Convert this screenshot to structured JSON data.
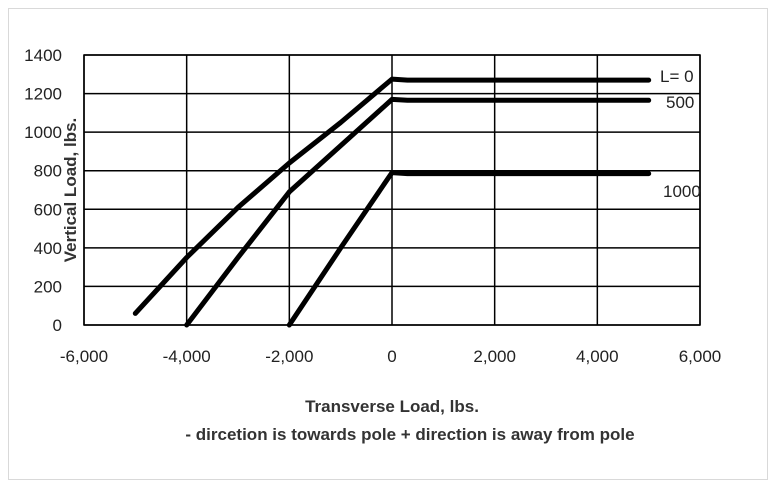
{
  "chart_data": {
    "type": "line",
    "title": "",
    "xlabel": "Transverse Load, lbs.",
    "xlabel_note": "- dircetion is towards pole    + direction is away from pole",
    "ylabel": "Vertical Load, lbs.",
    "xlim": [
      -6000,
      6000
    ],
    "ylim": [
      0,
      1400
    ],
    "x_ticks": [
      "-6,000",
      "-4,000",
      "-2,000",
      "0",
      "2,000",
      "4,000",
      "6,000"
    ],
    "y_ticks": [
      "0",
      "200",
      "400",
      "600",
      "800",
      "1000",
      "1200",
      "1400"
    ],
    "x_tick_values": [
      -6000,
      -4000,
      -2000,
      0,
      2000,
      4000,
      6000
    ],
    "y_tick_values": [
      0,
      200,
      400,
      600,
      800,
      1000,
      1200,
      1400
    ],
    "grid": true,
    "series": [
      {
        "name": "L=  0",
        "x": [
          -5000,
          -4000,
          -3000,
          -2000,
          -1000,
          0,
          300,
          5000
        ],
        "y": [
          60,
          350,
          610,
          840,
          1050,
          1275,
          1270,
          1270
        ]
      },
      {
        "name": "500",
        "x": [
          -4000,
          -3000,
          -2000,
          -1000,
          0,
          300,
          5000
        ],
        "y": [
          0,
          350,
          690,
          930,
          1170,
          1165,
          1165
        ]
      },
      {
        "name": "1000",
        "x": [
          -2000,
          -1000,
          0,
          300,
          5000
        ],
        "y": [
          0,
          400,
          790,
          785,
          785
        ]
      }
    ]
  }
}
